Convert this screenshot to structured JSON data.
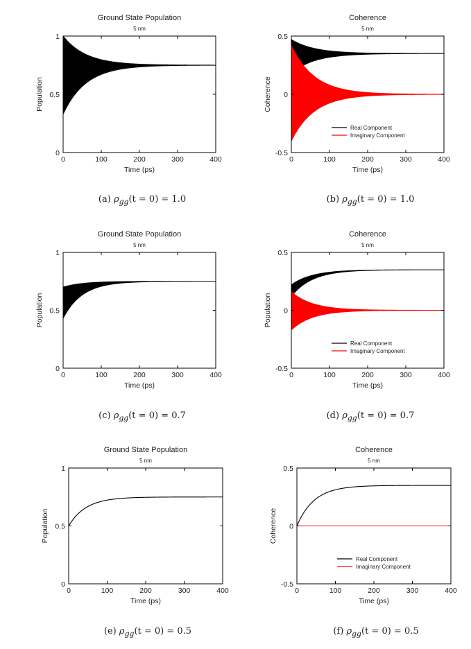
{
  "chart_data": [
    {
      "type": "line",
      "panel": "a",
      "title": "Ground State Population",
      "subtitle": "5 nm",
      "xlabel": "Time (ps)",
      "ylabel": "Population",
      "xlim": [
        0,
        400
      ],
      "ylim": [
        0,
        1
      ],
      "xticks": [
        "0",
        "100",
        "200",
        "300",
        "400"
      ],
      "yticks": [
        "0",
        "0.5",
        "1"
      ],
      "grid": false,
      "legend": null,
      "series": [
        {
          "name": "Population",
          "color": "#000000",
          "oscillating": true,
          "steady": 0.75,
          "start_upper": 1.0,
          "start_lower": 0.33,
          "tau_ps": 60
        }
      ]
    },
    {
      "type": "line",
      "panel": "b",
      "title": "Coherence",
      "subtitle": "5 nm",
      "xlabel": "Time (ps)",
      "ylabel": "Coherence",
      "xlim": [
        0,
        400
      ],
      "ylim": [
        -0.5,
        0.5
      ],
      "xticks": [
        "0",
        "100",
        "200",
        "300",
        "400"
      ],
      "yticks": [
        "-0.5",
        "0",
        "0.5"
      ],
      "grid": false,
      "legend": "lower-right",
      "series": [
        {
          "name": "Real Component",
          "color": "#000000",
          "oscillating": true,
          "steady": 0.35,
          "start_upper": 0.47,
          "start_lower": 0.18,
          "tau_ps": 60
        },
        {
          "name": "Imaginary Component",
          "color": "#ff0000",
          "oscillating": true,
          "steady": 0.0,
          "start_upper": 0.42,
          "start_lower": -0.4,
          "tau_ps": 60
        }
      ]
    },
    {
      "type": "line",
      "panel": "c",
      "title": "Ground State Population",
      "subtitle": "5 nm",
      "xlabel": "Time (ps)",
      "ylabel": "Population",
      "xlim": [
        0,
        400
      ],
      "ylim": [
        0,
        1
      ],
      "xticks": [
        "0",
        "100",
        "200",
        "300",
        "400"
      ],
      "yticks": [
        "0",
        "0.5",
        "1"
      ],
      "grid": false,
      "legend": null,
      "series": [
        {
          "name": "Population",
          "color": "#000000",
          "oscillating": true,
          "steady": 0.75,
          "start_upper": 0.7,
          "start_lower": 0.43,
          "tau_ps": 50
        }
      ]
    },
    {
      "type": "line",
      "panel": "d",
      "title": "Coherence",
      "subtitle": "5 nm",
      "xlabel": "Time (ps)",
      "ylabel": "Population",
      "xlim": [
        0,
        400
      ],
      "ylim": [
        -0.5,
        0.5
      ],
      "xticks": [
        "0",
        "100",
        "200",
        "300",
        "400"
      ],
      "yticks": [
        "-0.5",
        "0",
        "0.5"
      ],
      "grid": false,
      "legend": "lower-right",
      "series": [
        {
          "name": "Real Component",
          "color": "#000000",
          "oscillating": true,
          "steady": 0.35,
          "start_upper": 0.22,
          "start_lower": 0.12,
          "tau_ps": 55
        },
        {
          "name": "Imaginary Component",
          "color": "#ff0000",
          "oscillating": true,
          "steady": 0.0,
          "start_upper": 0.16,
          "start_lower": -0.17,
          "tau_ps": 55
        }
      ]
    },
    {
      "type": "line",
      "panel": "e",
      "title": "Ground State Population",
      "subtitle": "5 nm",
      "xlabel": "Time (ps)",
      "ylabel": "Population",
      "xlim": [
        0,
        400
      ],
      "ylim": [
        0,
        1
      ],
      "xticks": [
        "0",
        "100",
        "200",
        "300",
        "400"
      ],
      "yticks": [
        "0",
        "0.5",
        "1"
      ],
      "grid": false,
      "legend": null,
      "series": [
        {
          "name": "Population",
          "color": "#000000",
          "oscillating": false,
          "start": 0.5,
          "steady": 0.75,
          "tau_ps": 45
        }
      ]
    },
    {
      "type": "line",
      "panel": "f",
      "title": "Coherence",
      "subtitle": "5 nm",
      "xlabel": "Time (ps)",
      "ylabel": "Coherence",
      "xlim": [
        0,
        400
      ],
      "ylim": [
        -0.5,
        0.5
      ],
      "xticks": [
        "0",
        "100",
        "200",
        "300",
        "400"
      ],
      "yticks": [
        "-0.5",
        "0",
        "0.5"
      ],
      "grid": false,
      "legend": "lower-right",
      "series": [
        {
          "name": "Real Component",
          "color": "#000000",
          "oscillating": false,
          "start": 0.0,
          "steady": 0.35,
          "tau_ps": 45
        },
        {
          "name": "Imaginary Component",
          "color": "#ff0000",
          "oscillating": false,
          "start": 0.0,
          "steady": 0.0,
          "tau_ps": 45
        }
      ]
    }
  ],
  "captions": [
    {
      "label": "(a)",
      "math": "ρgg(t = 0) = 1.0",
      "prefix": "ρ",
      "sub": "gg",
      "rest": "(t = 0) = 1.0"
    },
    {
      "label": "(b)",
      "math": "ρgg(t = 0) = 1.0",
      "prefix": "ρ",
      "sub": "gg",
      "rest": "(t = 0) = 1.0"
    },
    {
      "label": "(c)",
      "math": "ρgg(t = 0) = 0.7",
      "prefix": "ρ",
      "sub": "gg",
      "rest": "(t = 0) = 0.7"
    },
    {
      "label": "(d)",
      "math": "ρgg(t = 0) = 0.7",
      "prefix": "ρ",
      "sub": "gg",
      "rest": "(t = 0) = 0.7"
    },
    {
      "label": "(e)",
      "math": "ρgg(t = 0) = 0.5",
      "prefix": "ρ",
      "sub": "gg",
      "rest": "(t = 0) = 0.5"
    },
    {
      "label": "(f)",
      "math": "ρgg(t = 0) = 0.5",
      "prefix": "ρ",
      "sub": "gg",
      "rest": "(t = 0) = 0.5"
    }
  ]
}
